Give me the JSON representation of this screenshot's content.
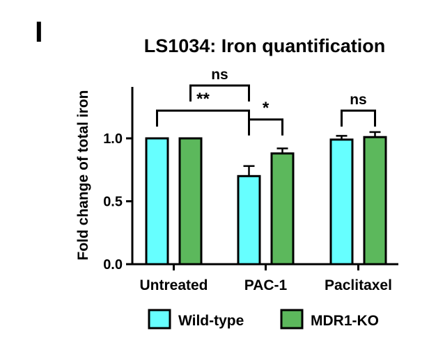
{
  "panel_label": "I",
  "chart_data": {
    "type": "bar",
    "title": "LS1034: Iron quantification",
    "xlabel": "",
    "ylabel": "Fold change of total iron",
    "ylim": [
      0,
      1.4
    ],
    "yticks": [
      0.0,
      0.5,
      1.0
    ],
    "ytick_labels": [
      "0.0",
      "0.5",
      "1.0"
    ],
    "categories": [
      "Untreated",
      "PAC-1",
      "Paclitaxel"
    ],
    "series": [
      {
        "name": "Wild-type",
        "color": "#66ffff",
        "values": [
          1.0,
          0.7,
          0.99
        ],
        "errors": [
          0.0,
          0.08,
          0.03
        ]
      },
      {
        "name": "MDR1-KO",
        "color": "#5cb85c",
        "values": [
          1.0,
          0.88,
          1.01
        ],
        "errors": [
          0.0,
          0.04,
          0.04
        ]
      }
    ],
    "legend_position": "bottom",
    "annotations": [
      {
        "label": "ns",
        "from": [
          0,
          1
        ],
        "to": [
          1,
          0
        ],
        "level": 1.42
      },
      {
        "label": "**",
        "from": [
          0,
          0
        ],
        "to": [
          1,
          0
        ],
        "level": 1.22
      },
      {
        "label": "*",
        "from": [
          1,
          0
        ],
        "to": [
          1,
          1
        ],
        "level": 1.15
      },
      {
        "label": "ns",
        "from": [
          2,
          0
        ],
        "to": [
          2,
          1
        ],
        "level": 1.22
      }
    ]
  }
}
